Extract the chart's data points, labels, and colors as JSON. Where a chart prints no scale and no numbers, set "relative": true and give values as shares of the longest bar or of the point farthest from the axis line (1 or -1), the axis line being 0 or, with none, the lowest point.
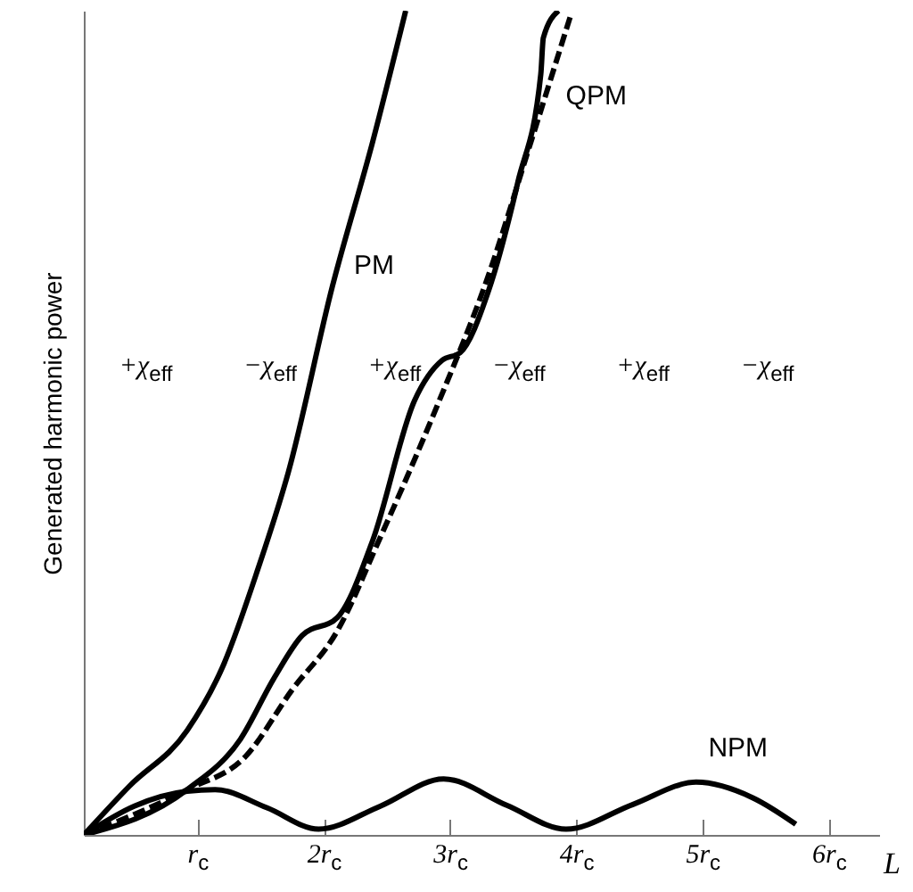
{
  "chart_data": {
    "type": "line",
    "relative": true,
    "xlabel": "L",
    "ylabel": "Generated harmonic power",
    "xlim": [
      0.1,
      6.4
    ],
    "xticks": [
      {
        "value": 1,
        "label": "r$_{c}$"
      },
      {
        "value": 2,
        "label": "2r$_{c}$"
      },
      {
        "value": 3,
        "label": "3r$_{c}$"
      },
      {
        "value": 4,
        "label": "4r$_{c}$"
      },
      {
        "value": 5,
        "label": "5r$_{c}$"
      },
      {
        "value": 6,
        "label": "6r$_{c}$"
      }
    ],
    "grid": false,
    "line_style": "solid",
    "marker": "none",
    "series": [
      {
        "name": "PM",
        "color": "#000000",
        "x": [
          0.1,
          0.46,
          0.92,
          1.2,
          1.48,
          1.72,
          2.07,
          2.39,
          2.65
        ],
        "values": [
          0,
          0.059,
          0.127,
          0.204,
          0.323,
          0.44,
          0.666,
          0.842,
          1
        ]
      },
      {
        "name": "QPM",
        "color": "#000000",
        "x": [
          0.1,
          0.92,
          1.34,
          1.61,
          1.83,
          2.11,
          2.39,
          2.72,
          2.94,
          3.08,
          3.31,
          3.54,
          3.72,
          3.74,
          3.86
        ],
        "values": [
          0,
          0.055,
          0.116,
          0.191,
          0.242,
          0.264,
          0.358,
          0.527,
          0.576,
          0.585,
          0.662,
          0.793,
          0.923,
          0.967,
          1
        ]
      },
      {
        "color": "#000000",
        "line_style": "dashed",
        "x": [
          0.1,
          0.92,
          1.38,
          1.75,
          2.11,
          2.44,
          2.9,
          3.31,
          3.63,
          3.96
        ],
        "values": [
          0,
          0.055,
          0.095,
          0.176,
          0.248,
          0.358,
          0.521,
          0.681,
          0.835,
          0.996
        ]
      },
      {
        "name": "NPM",
        "color": "#000000",
        "x": [
          0.1,
          0.5,
          0.92,
          1.14,
          1.55,
          1.96,
          2.45,
          2.95,
          3.45,
          3.92,
          4.45,
          4.95,
          5.4,
          5.74
        ],
        "values": [
          0,
          0.035,
          0.053,
          0.055,
          0.033,
          0.007,
          0.035,
          0.068,
          0.036,
          0.007,
          0.037,
          0.064,
          0.045,
          0.013
        ]
      }
    ],
    "annotations": [
      "+χ$_{eff}$",
      "−χ$_{eff}$",
      "+χ$_{eff}$",
      "−χ$_{eff}$",
      "+χ$_{eff}$",
      "−χ$_{eff}$"
    ]
  }
}
